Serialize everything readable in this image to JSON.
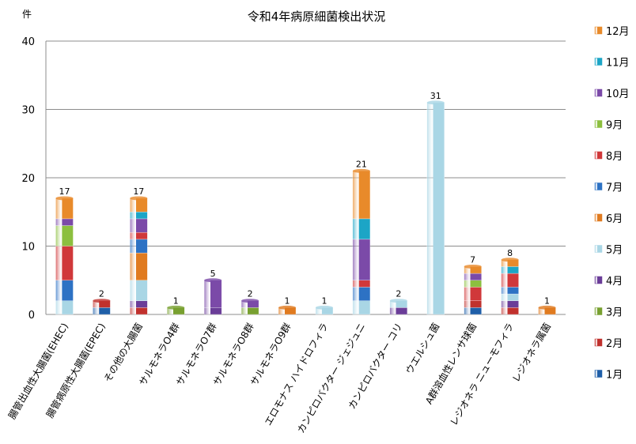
{
  "chart_data": {
    "type": "bar",
    "stacked": true,
    "title": "令和4年病原細菌検出状況",
    "ylabel": "件",
    "xlabel": "",
    "ylim": [
      0,
      40
    ],
    "yticks": [
      0,
      10,
      20,
      30,
      40
    ],
    "grid": true,
    "legend_position": "right",
    "categories": [
      "腸管出血性大腸菌(EHEC)",
      "腸管病原性大腸菌(EPEC)",
      "その他の大腸菌",
      "サルモネラO4群",
      "サルモネラO7群",
      "サルモネラO8群",
      "サルモネラO9群",
      "エロモナス ハイドロフィラ",
      "カンピロバクター ジェジュニ",
      "カンピロバクター コリ",
      "ウエルシュ菌",
      "A群溶血性レンサ球菌",
      "レジオネラ ニューモフィラ",
      "レジオネラ属菌"
    ],
    "totals": [
      17,
      2,
      17,
      1,
      5,
      2,
      1,
      1,
      21,
      2,
      31,
      7,
      8,
      1
    ],
    "series": [
      {
        "name": "1月",
        "color": "#1f5fa8",
        "values": [
          0,
          1,
          0,
          0,
          0,
          0,
          0,
          0,
          0,
          0,
          0,
          1,
          0,
          0
        ]
      },
      {
        "name": "2月",
        "color": "#c0312d",
        "values": [
          0,
          1,
          1,
          0,
          0,
          0,
          0,
          0,
          0,
          0,
          0,
          1,
          1,
          0
        ]
      },
      {
        "name": "3月",
        "color": "#78a030",
        "values": [
          0,
          0,
          0,
          1,
          0,
          1,
          0,
          0,
          0,
          0,
          0,
          0,
          0,
          0
        ]
      },
      {
        "name": "4月",
        "color": "#6a3d98",
        "values": [
          0,
          0,
          1,
          0,
          1,
          0,
          0,
          0,
          0,
          1,
          0,
          0,
          1,
          0
        ]
      },
      {
        "name": "5月",
        "color": "#a9d6e5",
        "values": [
          2,
          0,
          3,
          0,
          0,
          0,
          0,
          1,
          2,
          1,
          31,
          0,
          1,
          0
        ]
      },
      {
        "name": "6月",
        "color": "#e07b20",
        "values": [
          0,
          0,
          4,
          0,
          0,
          0,
          1,
          0,
          0,
          0,
          0,
          0,
          0,
          1
        ]
      },
      {
        "name": "7月",
        "color": "#2d72c4",
        "values": [
          3,
          0,
          2,
          0,
          0,
          0,
          0,
          0,
          2,
          0,
          0,
          0,
          1,
          0
        ]
      },
      {
        "name": "8月",
        "color": "#d0383a",
        "values": [
          5,
          0,
          1,
          0,
          0,
          0,
          0,
          0,
          1,
          0,
          0,
          2,
          2,
          0
        ]
      },
      {
        "name": "9月",
        "color": "#8cbf3f",
        "values": [
          3,
          0,
          0,
          0,
          0,
          0,
          0,
          0,
          0,
          0,
          0,
          1,
          0,
          0
        ]
      },
      {
        "name": "10月",
        "color": "#7b4aa8",
        "values": [
          1,
          0,
          2,
          0,
          4,
          1,
          0,
          0,
          6,
          0,
          0,
          1,
          0,
          0
        ]
      },
      {
        "name": "11月",
        "color": "#1ca5c6",
        "values": [
          0,
          0,
          1,
          0,
          0,
          0,
          0,
          0,
          3,
          0,
          0,
          0,
          1,
          0
        ]
      },
      {
        "name": "12月",
        "color": "#e88a2a",
        "values": [
          3,
          0,
          2,
          0,
          0,
          0,
          0,
          0,
          7,
          0,
          0,
          1,
          1,
          0
        ]
      }
    ]
  }
}
